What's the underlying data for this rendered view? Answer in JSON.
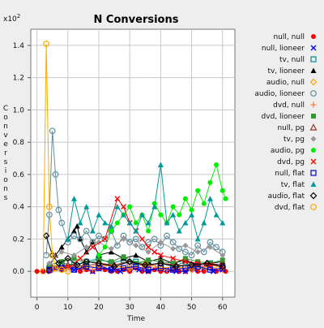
{
  "chart_data": {
    "type": "line",
    "title": "N Conversions",
    "xlabel": "Time",
    "ylabel": "Conversions",
    "y_multiplier_label": "x10",
    "y_multiplier_exp": "2",
    "xlim": [
      -2,
      64
    ],
    "ylim": [
      -0.16,
      1.5
    ],
    "x_ticks": [
      0,
      10,
      20,
      30,
      40,
      50,
      60
    ],
    "x_tick_labels": [
      "0",
      "10",
      "20",
      "30",
      "40",
      "50",
      "60"
    ],
    "y_ticks": [
      0.0,
      0.2,
      0.4,
      0.6,
      0.8,
      1.0,
      1.2,
      1.4
    ],
    "y_tick_labels": [
      "0.0",
      "0.2",
      "0.4",
      "0.6",
      "0.8",
      "1.0",
      "1.2",
      "1.4"
    ],
    "grid": true,
    "legend_position": "right",
    "series": [
      {
        "name": "null, null",
        "color": "#ff0000",
        "marker": "filled-circle",
        "x": [
          0,
          2,
          4,
          6,
          8,
          10,
          12,
          14,
          16,
          18,
          20,
          22,
          24,
          26,
          28,
          30,
          32,
          34,
          36,
          38,
          40,
          42,
          44,
          46,
          48,
          50,
          52,
          54,
          56,
          58,
          60,
          61
        ],
        "y": [
          0,
          0,
          0,
          0.02,
          0.01,
          0.03,
          0.02,
          0,
          0.01,
          0,
          0.02,
          0.01,
          0,
          0,
          0.01,
          0,
          0.02,
          0,
          0,
          0.01,
          0,
          0,
          0.01,
          0,
          0,
          0.01,
          0,
          0,
          0.02,
          0,
          0.01,
          0
        ]
      },
      {
        "name": "null, lioneer",
        "color": "#0000ff",
        "marker": "x",
        "x": [
          3,
          6,
          9,
          12,
          15,
          18,
          21,
          24,
          27,
          30,
          33,
          36,
          39,
          42,
          45,
          48,
          51,
          54,
          57,
          60
        ],
        "y": [
          0,
          0.02,
          0.03,
          0.01,
          0.02,
          0,
          0.03,
          0.01,
          0,
          0.02,
          0.01,
          0,
          0.02,
          0.01,
          0,
          0,
          0.01,
          0.02,
          0,
          0.01
        ]
      },
      {
        "name": "tv, null",
        "color": "#008b8b",
        "marker": "open-square",
        "x": [
          4,
          8,
          12,
          16,
          20,
          24,
          28,
          32,
          36,
          40,
          44,
          48,
          52,
          56,
          60
        ],
        "y": [
          0.02,
          0.05,
          0.04,
          0.06,
          0.08,
          0.05,
          0.07,
          0.06,
          0.04,
          0.05,
          0.03,
          0.06,
          0.04,
          0.05,
          0.03
        ]
      },
      {
        "name": "tv, lioneer",
        "color": "#000000",
        "marker": "filled-triangle",
        "x": [
          4,
          6,
          8,
          10,
          12,
          13,
          14,
          16,
          18,
          20,
          24,
          28,
          32,
          36,
          40,
          44,
          48,
          52,
          56,
          60
        ],
        "y": [
          0.03,
          0.1,
          0.15,
          0.2,
          0.25,
          0.28,
          0.2,
          0.12,
          0.18,
          0.1,
          0.12,
          0.08,
          0.1,
          0.06,
          0.08,
          0.05,
          0.07,
          0.04,
          0.05,
          0.06
        ]
      },
      {
        "name": "audio, null",
        "color": "#ffa500",
        "marker": "open-diamond",
        "x": [
          5,
          10,
          15,
          20,
          25,
          30,
          35,
          40,
          45,
          50,
          55,
          60
        ],
        "y": [
          0.01,
          0.03,
          0.02,
          0.04,
          0.03,
          0.02,
          0.05,
          0.02,
          0.03,
          0.01,
          0.02,
          0.03
        ]
      },
      {
        "name": "audio, lioneer",
        "color": "#5f8f9f",
        "marker": "open-circle",
        "x": [
          3,
          4,
          5,
          6,
          7,
          8,
          10,
          12,
          14,
          16,
          18,
          20,
          22,
          24,
          26,
          28,
          30,
          32,
          34,
          36,
          38,
          40,
          42,
          44,
          46,
          48,
          50,
          52,
          54,
          56,
          58,
          60
        ],
        "y": [
          0.1,
          0.35,
          0.87,
          0.6,
          0.38,
          0.3,
          0.18,
          0.22,
          0.2,
          0.25,
          0.18,
          0.22,
          0.2,
          0.25,
          0.16,
          0.22,
          0.18,
          0.2,
          0.15,
          0.18,
          0.2,
          0.16,
          0.22,
          0.18,
          0.14,
          0.12,
          0.1,
          0.16,
          0.12,
          0.18,
          0.15,
          0.12
        ]
      },
      {
        "name": "dvd, null",
        "color": "#ff8040",
        "marker": "plus",
        "x": [
          6,
          12,
          18,
          24,
          30,
          36,
          42,
          48,
          54,
          60
        ],
        "y": [
          0.02,
          0.03,
          0.01,
          0.04,
          0.02,
          0.03,
          0.01,
          0.02,
          0.03,
          0.01
        ]
      },
      {
        "name": "dvd, lioneer",
        "color": "#339933",
        "marker": "filled-square",
        "x": [
          4,
          8,
          12,
          16,
          20,
          24,
          28,
          32,
          36,
          40,
          44,
          48,
          52,
          56,
          60
        ],
        "y": [
          0.04,
          0.06,
          0.08,
          0.05,
          0.07,
          0.06,
          0.09,
          0.05,
          0.07,
          0.06,
          0.05,
          0.08,
          0.06,
          0.05,
          0.07
        ]
      },
      {
        "name": "null, pg",
        "color": "#993333",
        "marker": "open-triangle",
        "x": [
          5,
          10,
          15,
          20,
          25,
          30,
          35,
          40,
          45,
          50,
          55,
          60
        ],
        "y": [
          0.02,
          0.04,
          0.03,
          0.05,
          0.04,
          0.06,
          0.03,
          0.05,
          0.04,
          0.03,
          0.05,
          0.04
        ]
      },
      {
        "name": "tv, pg",
        "color": "#999999",
        "marker": "filled-diamond",
        "x": [
          4,
          8,
          12,
          16,
          20,
          24,
          28,
          32,
          36,
          40,
          44,
          48,
          52,
          56,
          60
        ],
        "y": [
          0.05,
          0.12,
          0.1,
          0.15,
          0.18,
          0.14,
          0.2,
          0.16,
          0.12,
          0.18,
          0.14,
          0.16,
          0.12,
          0.15,
          0.1
        ]
      },
      {
        "name": "audio, pg",
        "color": "#00ee00",
        "marker": "filled-circle",
        "x": [
          20,
          22,
          24,
          26,
          28,
          30,
          32,
          34,
          36,
          38,
          40,
          42,
          44,
          46,
          48,
          50,
          52,
          54,
          56,
          58,
          60,
          61
        ],
        "y": [
          0.1,
          0.15,
          0.25,
          0.3,
          0.35,
          0.4,
          0.3,
          0.35,
          0.25,
          0.42,
          0.35,
          0.3,
          0.4,
          0.35,
          0.45,
          0.38,
          0.5,
          0.42,
          0.55,
          0.66,
          0.5,
          0.45
        ]
      },
      {
        "name": "dvd, pg",
        "color": "#ff0000",
        "marker": "x",
        "x": [
          10,
          14,
          18,
          22,
          26,
          28,
          30,
          32,
          34,
          36,
          38,
          40,
          44,
          48,
          52,
          56,
          60
        ],
        "y": [
          0.02,
          0.08,
          0.15,
          0.2,
          0.45,
          0.4,
          0.3,
          0.25,
          0.2,
          0.15,
          0.12,
          0.1,
          0.08,
          0.06,
          0.05,
          0.04,
          0.03
        ]
      },
      {
        "name": "null, flat",
        "color": "#0000cc",
        "marker": "open-square",
        "x": [
          4,
          8,
          12,
          16,
          20,
          24,
          28,
          32,
          36,
          40,
          44,
          48,
          52,
          56,
          60
        ],
        "y": [
          0.01,
          0.02,
          0.01,
          0.03,
          0.02,
          0.01,
          0.02,
          0.03,
          0.01,
          0.02,
          0.01,
          0.02,
          0.03,
          0.01,
          0.02
        ]
      },
      {
        "name": "tv, flat",
        "color": "#009999",
        "marker": "filled-triangle",
        "x": [
          10,
          12,
          14,
          16,
          18,
          20,
          22,
          24,
          26,
          28,
          30,
          32,
          34,
          36,
          38,
          40,
          42,
          44,
          46,
          48,
          50,
          52,
          54,
          56,
          58,
          60
        ],
        "y": [
          0.2,
          0.45,
          0.3,
          0.4,
          0.25,
          0.35,
          0.3,
          0.28,
          0.4,
          0.35,
          0.3,
          0.25,
          0.35,
          0.3,
          0.4,
          0.66,
          0.3,
          0.35,
          0.25,
          0.3,
          0.35,
          0.2,
          0.3,
          0.45,
          0.35,
          0.3
        ]
      },
      {
        "name": "audio, flat",
        "color": "#000000",
        "marker": "open-diamond",
        "x": [
          3,
          5,
          7,
          10,
          13,
          16,
          20,
          25,
          30,
          35,
          40,
          45,
          50,
          55,
          60
        ],
        "y": [
          0.22,
          0.1,
          0.05,
          0.08,
          0.04,
          0.06,
          0.05,
          0.03,
          0.06,
          0.04,
          0.05,
          0.03,
          0.04,
          0.05,
          0.03
        ]
      },
      {
        "name": "dvd, flat",
        "color": "#ffaa00",
        "marker": "open-circle",
        "x": [
          2,
          3,
          4,
          5,
          6,
          8,
          10
        ],
        "y": [
          0.0,
          1.41,
          0.4,
          0.1,
          0.02,
          0.01,
          0
        ]
      }
    ]
  }
}
